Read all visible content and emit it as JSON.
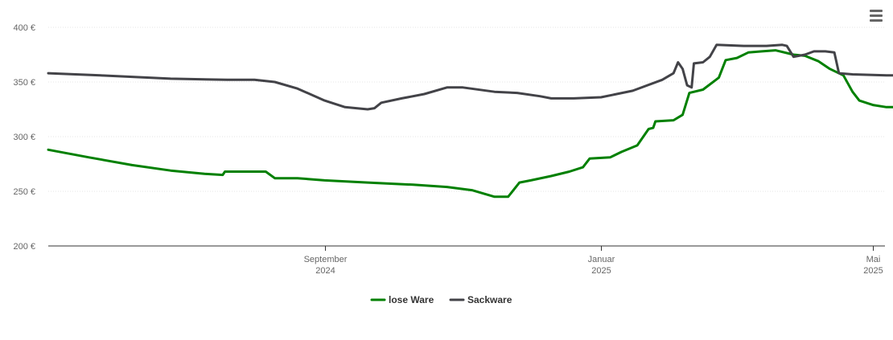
{
  "chart_data": {
    "type": "line",
    "title": "",
    "xlabel": "",
    "ylabel": "",
    "ylim": [
      200,
      400
    ],
    "yticks": [
      200,
      250,
      300,
      350,
      400
    ],
    "y_tick_labels": [
      "200 €",
      "250 €",
      "300 €",
      "350 €",
      "400 €"
    ],
    "x_ticks": [
      {
        "date": "2024-09-01",
        "label": "September",
        "year": "2024"
      },
      {
        "date": "2025-01-01",
        "label": "Januar",
        "year": "2025"
      },
      {
        "date": "2025-05-01",
        "label": "Mai",
        "year": "2025"
      }
    ],
    "xlim": [
      "2024-05-02",
      "2025-05-01"
    ],
    "grid": true,
    "legend_position": "bottom-center",
    "series": [
      {
        "name": "lose Ware",
        "color": "#008000",
        "points": [
          [
            "2024-05-02",
            288
          ],
          [
            "2024-05-20",
            281
          ],
          [
            "2024-06-08",
            274
          ],
          [
            "2024-06-25",
            269
          ],
          [
            "2024-07-10",
            266
          ],
          [
            "2024-07-18",
            265
          ],
          [
            "2024-07-19",
            268
          ],
          [
            "2024-08-01",
            268
          ],
          [
            "2024-08-06",
            268
          ],
          [
            "2024-08-10",
            262
          ],
          [
            "2024-08-20",
            262
          ],
          [
            "2024-09-01",
            260
          ],
          [
            "2024-09-20",
            258
          ],
          [
            "2024-10-10",
            256
          ],
          [
            "2024-10-25",
            254
          ],
          [
            "2024-11-05",
            251
          ],
          [
            "2024-11-15",
            245
          ],
          [
            "2024-11-21",
            245
          ],
          [
            "2024-11-26",
            258
          ],
          [
            "2024-12-01",
            260
          ],
          [
            "2024-12-10",
            264
          ],
          [
            "2024-12-18",
            268
          ],
          [
            "2024-12-24",
            272
          ],
          [
            "2024-12-27",
            280
          ],
          [
            "2025-01-05",
            281
          ],
          [
            "2025-01-10",
            286
          ],
          [
            "2025-01-17",
            292
          ],
          [
            "2025-01-22",
            307
          ],
          [
            "2025-01-24",
            308
          ],
          [
            "2025-01-25",
            314
          ],
          [
            "2025-02-02",
            315
          ],
          [
            "2025-02-06",
            320
          ],
          [
            "2025-02-09",
            340
          ],
          [
            "2025-02-15",
            343
          ],
          [
            "2025-02-22",
            354
          ],
          [
            "2025-02-25",
            370
          ],
          [
            "2025-03-02",
            372
          ],
          [
            "2025-03-07",
            377
          ],
          [
            "2025-03-13",
            378
          ],
          [
            "2025-03-19",
            379
          ],
          [
            "2025-03-27",
            375
          ],
          [
            "2025-04-01",
            374
          ],
          [
            "2025-04-07",
            369
          ],
          [
            "2025-04-12",
            362
          ],
          [
            "2025-04-18",
            356
          ],
          [
            "2025-04-22",
            341
          ],
          [
            "2025-04-25",
            333
          ],
          [
            "2025-05-01",
            329
          ],
          [
            "2025-05-07",
            327
          ],
          [
            "2025-05-14",
            327
          ]
        ]
      },
      {
        "name": "Sackware",
        "color": "#434348",
        "points": [
          [
            "2024-05-02",
            358
          ],
          [
            "2024-05-25",
            356
          ],
          [
            "2024-06-25",
            353
          ],
          [
            "2024-07-20",
            352
          ],
          [
            "2024-08-01",
            352
          ],
          [
            "2024-08-10",
            350
          ],
          [
            "2024-08-20",
            344
          ],
          [
            "2024-09-01",
            333
          ],
          [
            "2024-09-10",
            327
          ],
          [
            "2024-09-20",
            325
          ],
          [
            "2024-09-23",
            326
          ],
          [
            "2024-09-26",
            331
          ],
          [
            "2024-10-05",
            335
          ],
          [
            "2024-10-15",
            339
          ],
          [
            "2024-10-25",
            345
          ],
          [
            "2024-11-01",
            345
          ],
          [
            "2024-11-15",
            341
          ],
          [
            "2024-11-25",
            340
          ],
          [
            "2024-12-05",
            337
          ],
          [
            "2024-12-10",
            335
          ],
          [
            "2024-12-20",
            335
          ],
          [
            "2025-01-01",
            336
          ],
          [
            "2025-01-15",
            342
          ],
          [
            "2025-01-28",
            352
          ],
          [
            "2025-02-02",
            358
          ],
          [
            "2025-02-04",
            368
          ],
          [
            "2025-02-06",
            362
          ],
          [
            "2025-02-08",
            347
          ],
          [
            "2025-02-10",
            345
          ],
          [
            "2025-02-11",
            367
          ],
          [
            "2025-02-15",
            368
          ],
          [
            "2025-02-18",
            373
          ],
          [
            "2025-02-21",
            384
          ],
          [
            "2025-03-05",
            383
          ],
          [
            "2025-03-15",
            383
          ],
          [
            "2025-03-22",
            384
          ],
          [
            "2025-03-24",
            383
          ],
          [
            "2025-03-27",
            373
          ],
          [
            "2025-04-01",
            375
          ],
          [
            "2025-04-05",
            378
          ],
          [
            "2025-04-10",
            378
          ],
          [
            "2025-04-14",
            377
          ],
          [
            "2025-04-16",
            358
          ],
          [
            "2025-04-22",
            357
          ],
          [
            "2025-05-07",
            356
          ],
          [
            "2025-05-11",
            356
          ],
          [
            "2025-05-14",
            346
          ]
        ]
      }
    ]
  },
  "colors": {
    "grid": "#e6e6e6",
    "axis": "#333333",
    "tick_text": "#666666"
  },
  "menu": {
    "icon": "hamburger-menu-icon"
  }
}
